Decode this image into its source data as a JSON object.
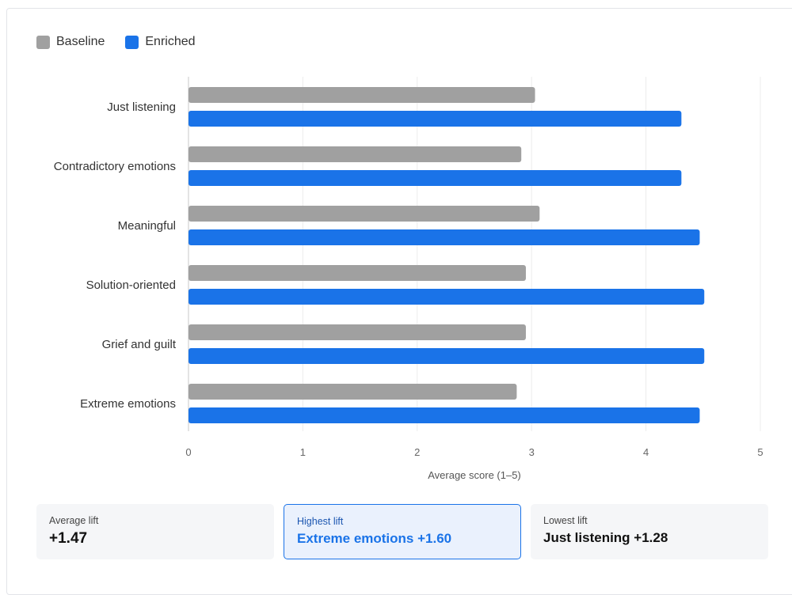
{
  "colors": {
    "baseline": "#a0a0a0",
    "enriched": "#1a73e8"
  },
  "legend": [
    {
      "label": "Baseline",
      "color": "#a0a0a0"
    },
    {
      "label": "Enriched",
      "color": "#1a73e8"
    }
  ],
  "chart_data": {
    "type": "bar",
    "orientation": "horizontal",
    "categories": [
      "Just listening",
      "Contradictory emotions",
      "Meaningful",
      "Solution-oriented",
      "Grief and guilt",
      "Extreme emotions"
    ],
    "series": [
      {
        "name": "Baseline",
        "values": [
          3.03,
          2.91,
          3.07,
          2.95,
          2.95,
          2.87
        ]
      },
      {
        "name": "Enriched",
        "values": [
          4.31,
          4.31,
          4.47,
          4.51,
          4.51,
          4.47
        ]
      }
    ],
    "xlabel": "Average score (1–5)",
    "xlim": [
      0,
      5
    ],
    "xticks": [
      "0",
      "1",
      "2",
      "3",
      "4",
      "5"
    ],
    "grid": true,
    "legend_position": "top-left"
  },
  "stats": [
    {
      "label": "Average lift",
      "value": "+1.47"
    },
    {
      "label": "Highest lift",
      "value": "Extreme emotions +1.60"
    },
    {
      "label": "Lowest lift",
      "value": "Just listening +1.28"
    }
  ]
}
